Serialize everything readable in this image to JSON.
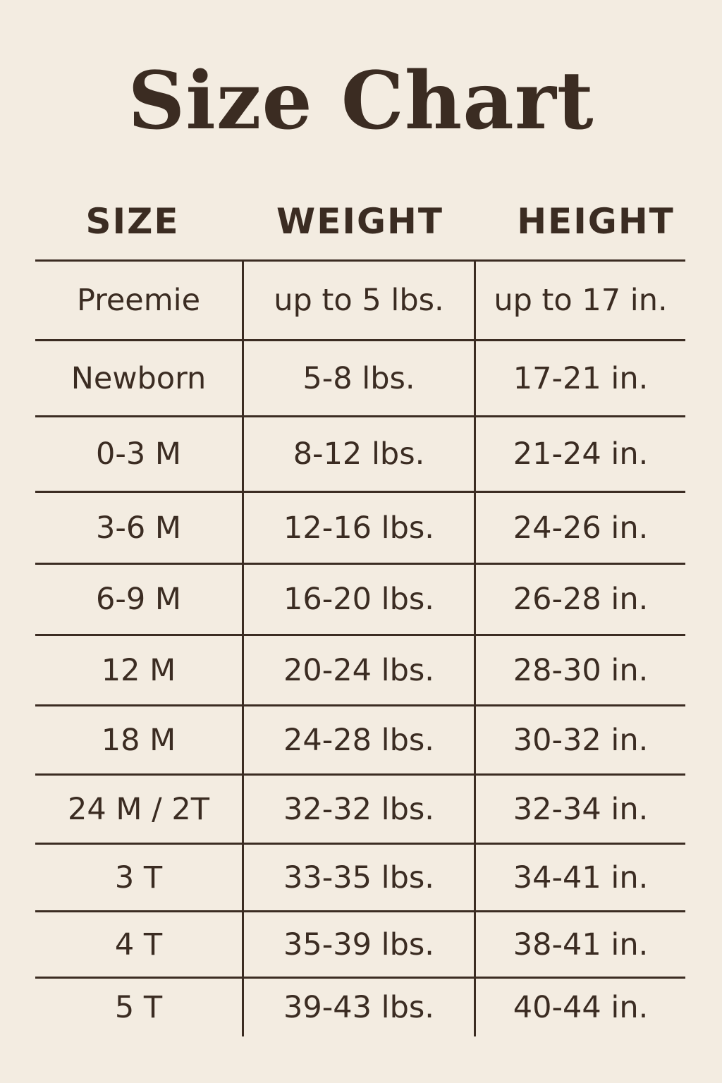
{
  "title": "Size Chart",
  "headers": [
    "SIZE",
    "WEIGHT",
    "HEIGHT"
  ],
  "rows": [
    [
      "Preemie",
      "up to 5 lbs.",
      "up to 17 in."
    ],
    [
      "Newborn",
      "5-8 lbs.",
      "17-21 in."
    ],
    [
      "0-3 M",
      "8-12 lbs.",
      "21-24 in."
    ],
    [
      "3-6 M",
      "12-16 lbs.",
      "24-26 in."
    ],
    [
      "6-9 M",
      "16-20 lbs.",
      "26-28 in."
    ],
    [
      "12 M",
      "20-24 lbs.",
      "28-30 in."
    ],
    [
      "18 M",
      "24-28 lbs.",
      "30-32 in."
    ],
    [
      "24 M / 2T",
      "32-32 lbs.",
      "32-34 in."
    ],
    [
      "3 T",
      "33-35 lbs.",
      "34-41 in."
    ],
    [
      "4 T",
      "35-39 lbs.",
      "38-41 in."
    ],
    [
      "5 T",
      "39-43 lbs.",
      "40-44 in."
    ]
  ],
  "colors": {
    "background": "#f3ece1",
    "text": "#3b2c22"
  }
}
